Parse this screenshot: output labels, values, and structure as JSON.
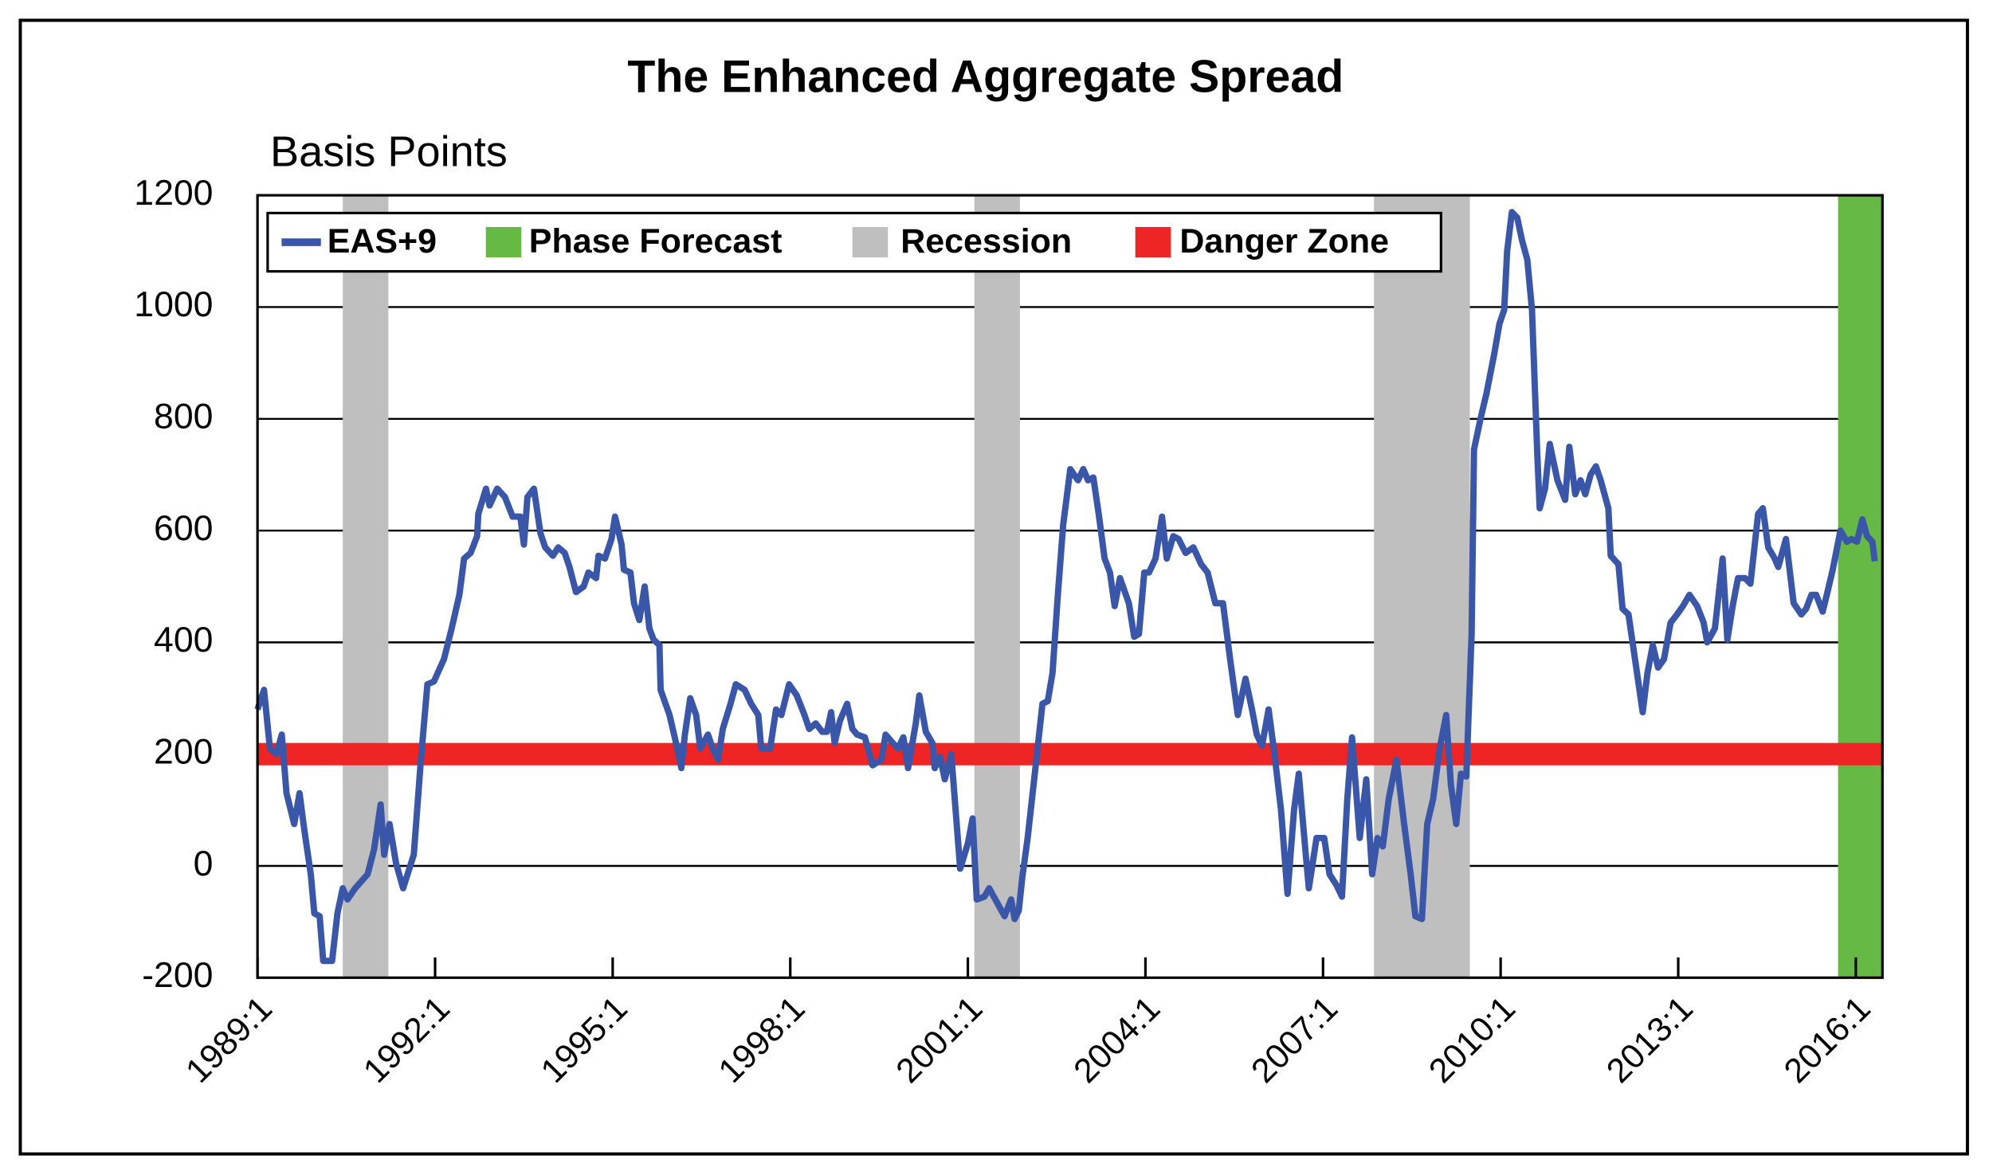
{
  "chart_data": {
    "type": "line",
    "title": "The Enhanced Aggregate Spread",
    "y_label": "Basis Points",
    "x": [
      1989.0,
      1989.11,
      1989.21,
      1989.32,
      1989.41,
      1989.49,
      1989.62,
      1989.71,
      1989.79,
      1989.9,
      1989.96,
      1990.05,
      1990.11,
      1990.26,
      1990.35,
      1990.44,
      1990.52,
      1990.65,
      1990.86,
      1990.97,
      1991.08,
      1991.14,
      1991.23,
      1991.34,
      1991.46,
      1991.64,
      1991.76,
      1991.87,
      1991.98,
      1992.15,
      1992.28,
      1992.41,
      1992.49,
      1992.6,
      1992.71,
      1992.73,
      1992.86,
      1992.92,
      1993.05,
      1993.18,
      1993.31,
      1993.44,
      1993.5,
      1993.56,
      1993.67,
      1993.78,
      1993.86,
      1993.99,
      1994.08,
      1994.19,
      1994.27,
      1994.38,
      1994.51,
      1994.59,
      1994.72,
      1994.76,
      1994.87,
      1994.98,
      1995.04,
      1995.15,
      1995.19,
      1995.3,
      1995.36,
      1995.45,
      1995.54,
      1995.62,
      1995.69,
      1995.79,
      1995.81,
      1995.96,
      1996.07,
      1996.16,
      1996.22,
      1996.31,
      1996.41,
      1996.48,
      1996.61,
      1996.69,
      1996.78,
      1996.86,
      1996.99,
      1997.08,
      1997.23,
      1997.34,
      1997.46,
      1997.51,
      1997.66,
      1997.76,
      1997.85,
      1997.98,
      1998.11,
      1998.24,
      1998.32,
      1998.43,
      1998.54,
      1998.62,
      1998.69,
      1998.75,
      1998.84,
      1998.96,
      1999.05,
      1999.13,
      1999.26,
      1999.39,
      1999.54,
      1999.61,
      1999.73,
      1999.82,
      1999.91,
      1999.99,
      2000.12,
      2000.18,
      2000.29,
      2000.4,
      2000.44,
      2000.53,
      2000.61,
      2000.72,
      2000.76,
      2000.87,
      2001.0,
      2001.08,
      2001.15,
      2001.28,
      2001.36,
      2001.49,
      2001.62,
      2001.73,
      2001.79,
      2001.86,
      2001.92,
      2002.01,
      2002.11,
      2002.26,
      2002.35,
      2002.43,
      2002.52,
      2002.61,
      2002.73,
      2002.86,
      2002.95,
      2003.03,
      2003.12,
      2003.21,
      2003.31,
      2003.4,
      2003.48,
      2003.57,
      2003.72,
      2003.81,
      2003.89,
      2003.98,
      2004.06,
      2004.17,
      2004.28,
      2004.36,
      2004.47,
      2004.56,
      2004.68,
      2004.81,
      2004.94,
      2005.05,
      2005.18,
      2005.31,
      2005.43,
      2005.56,
      2005.69,
      2005.8,
      2005.88,
      2005.97,
      2006.08,
      2006.18,
      2006.29,
      2006.4,
      2006.51,
      2006.59,
      2006.7,
      2006.76,
      2006.89,
      2007.02,
      2007.11,
      2007.23,
      2007.32,
      2007.41,
      2007.49,
      2007.62,
      2007.73,
      2007.83,
      2007.92,
      2008.01,
      2008.11,
      2008.24,
      2008.37,
      2008.48,
      2008.56,
      2008.67,
      2008.76,
      2008.86,
      2008.97,
      2009.08,
      2009.16,
      2009.25,
      2009.33,
      2009.42,
      2009.51,
      2009.55,
      2009.66,
      2009.76,
      2009.89,
      2009.98,
      2010.06,
      2010.11,
      2010.19,
      2010.28,
      2010.36,
      2010.45,
      2010.53,
      2010.62,
      2010.66,
      2010.75,
      2010.83,
      2010.96,
      2011.09,
      2011.16,
      2011.26,
      2011.35,
      2011.43,
      2011.52,
      2011.61,
      2011.69,
      2011.82,
      2011.86,
      2011.99,
      2012.06,
      2012.16,
      2012.27,
      2012.4,
      2012.48,
      2012.57,
      2012.66,
      2012.76,
      2012.87,
      2012.98,
      2013.08,
      2013.19,
      2013.32,
      2013.43,
      2013.49,
      2013.62,
      2013.75,
      2013.83,
      2013.92,
      2014.01,
      2014.13,
      2014.22,
      2014.35,
      2014.43,
      2014.52,
      2014.63,
      2014.69,
      2014.82,
      2014.95,
      2015.08,
      2015.16,
      2015.25,
      2015.33,
      2015.44,
      2015.51,
      2015.61,
      2015.74,
      2015.85,
      2015.93,
      2016.02,
      2016.11,
      2016.19,
      2016.28,
      2016.32
    ],
    "series": [
      {
        "name": "EAS+9",
        "color": "#3a56a8",
        "values": [
          280,
          315,
          210,
          200,
          235,
          130,
          75,
          130,
          65,
          -15,
          -85,
          -90,
          -170,
          -170,
          -85,
          -40,
          -60,
          -40,
          -15,
          30,
          110,
          20,
          75,
          5,
          -40,
          20,
          190,
          325,
          330,
          370,
          425,
          485,
          550,
          560,
          590,
          630,
          675,
          645,
          675,
          660,
          625,
          625,
          575,
          660,
          675,
          595,
          570,
          555,
          570,
          560,
          535,
          490,
          500,
          525,
          515,
          555,
          550,
          585,
          625,
          575,
          530,
          525,
          470,
          440,
          500,
          425,
          405,
          395,
          315,
          270,
          220,
          175,
          235,
          300,
          270,
          210,
          235,
          210,
          190,
          245,
          290,
          325,
          315,
          290,
          270,
          210,
          210,
          280,
          270,
          325,
          305,
          270,
          245,
          255,
          240,
          240,
          275,
          220,
          260,
          290,
          245,
          235,
          230,
          180,
          190,
          235,
          220,
          210,
          230,
          175,
          255,
          305,
          240,
          220,
          175,
          195,
          155,
          200,
          145,
          -5,
          40,
          85,
          -60,
          -55,
          -40,
          -65,
          -90,
          -60,
          -95,
          -80,
          -20,
          50,
          145,
          290,
          295,
          345,
          485,
          610,
          710,
          690,
          710,
          690,
          695,
          630,
          550,
          525,
          465,
          515,
          470,
          410,
          415,
          525,
          525,
          550,
          625,
          550,
          590,
          585,
          560,
          570,
          540,
          525,
          470,
          470,
          370,
          270,
          335,
          280,
          235,
          215,
          280,
          200,
          100,
          -50,
          100,
          165,
          30,
          -40,
          50,
          50,
          -15,
          -35,
          -55,
          120,
          230,
          50,
          155,
          -15,
          50,
          35,
          120,
          190,
          75,
          -15,
          -90,
          -95,
          75,
          120,
          210,
          270,
          145,
          75,
          165,
          160,
          415,
          745,
          800,
          845,
          915,
          970,
          995,
          1100,
          1170,
          1160,
          1120,
          1085,
          995,
          735,
          640,
          675,
          755,
          690,
          655,
          750,
          665,
          690,
          665,
          700,
          715,
          690,
          640,
          555,
          540,
          460,
          450,
          370,
          275,
          345,
          395,
          355,
          370,
          435,
          450,
          465,
          485,
          465,
          435,
          400,
          425,
          550,
          405,
          465,
          515,
          515,
          505,
          630,
          640,
          570,
          550,
          535,
          585,
          470,
          450,
          460,
          485,
          485,
          455,
          485,
          530,
          600,
          580,
          585,
          580,
          620,
          590,
          580,
          545
        ]
      }
    ],
    "phase_forecast": {
      "name": "Phase Forecast",
      "color": "#67b946",
      "span": [
        2015.7,
        2016.45
      ]
    },
    "recession": {
      "name": "Recession",
      "color": "#c0bfc0",
      "spans": [
        [
          1990.44,
          1991.21
        ],
        [
          2001.11,
          2001.88
        ],
        [
          2007.86,
          2009.48
        ]
      ]
    },
    "danger_zone": {
      "name": "Danger Zone",
      "color": "#ee2524",
      "range": [
        180,
        220
      ]
    },
    "xlim": [
      1989,
      2016.45
    ],
    "ylim": [
      -200,
      1200
    ],
    "xticks": [
      {
        "value": 1989,
        "label": "1989:1"
      },
      {
        "value": 1992,
        "label": "1992:1"
      },
      {
        "value": 1995,
        "label": "1995:1"
      },
      {
        "value": 1998,
        "label": "1998:1"
      },
      {
        "value": 2001,
        "label": "2001:1"
      },
      {
        "value": 2004,
        "label": "2004:1"
      },
      {
        "value": 2007,
        "label": "2007:1"
      },
      {
        "value": 2010,
        "label": "2010:1"
      },
      {
        "value": 2013,
        "label": "2013:1"
      },
      {
        "value": 2016,
        "label": "2016:1"
      }
    ],
    "yticks": [
      -200,
      0,
      200,
      400,
      600,
      800,
      1000,
      1200
    ],
    "grid": true,
    "legend": "top-left"
  }
}
